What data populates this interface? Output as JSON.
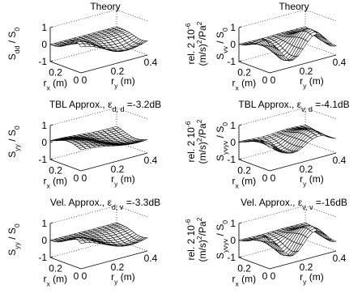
{
  "chart_data": [
    {
      "type": "surface",
      "title": "Theory",
      "zlabel": "S_dd / S_0",
      "zlabel_sub": "dd",
      "units_label": "",
      "xlabel": "r_x (m)",
      "ylabel": "r_y (m)",
      "zlim": [
        -1,
        1
      ],
      "zticks": [
        "1",
        "0",
        "-1"
      ],
      "xticks": [
        "0.2",
        "0"
      ],
      "yticks": [
        "0",
        "0.2",
        "0.4"
      ],
      "surface": "dd_theory"
    },
    {
      "type": "surface",
      "title": "Theory",
      "zlabel": "S_vv / S_0",
      "zlabel_sub": "vv",
      "units_label": "rel. 2 10^-6 (m/s)^2/Pa^2",
      "xlabel": "r_x (m)",
      "ylabel": "r_y (m)",
      "zlim": [
        -1,
        1
      ],
      "zticks": [
        "1",
        "0",
        "-1"
      ],
      "xticks": [
        "0.2",
        "0"
      ],
      "yticks": [
        "0",
        "0.2",
        "0.4"
      ],
      "surface": "vv_theory"
    },
    {
      "type": "surface",
      "title": "TBL Approx., ε_d,d =-3.2dB",
      "title_main": "TBL Approx., ε",
      "title_sub": "d, d",
      "title_tail": " =-3.2dB",
      "zlabel": "S_yy / S_0",
      "zlabel_sub": "yy",
      "units_label": "",
      "xlabel": "r_x (m)",
      "ylabel": "r_y (m)",
      "zlim": [
        -1,
        1
      ],
      "zticks": [
        "1",
        "0",
        "-1"
      ],
      "xticks": [
        "0.2",
        "0"
      ],
      "yticks": [
        "0",
        "0.2",
        "0.4"
      ],
      "surface": "dd_tbl"
    },
    {
      "type": "surface",
      "title": "TBL Approx., ε_v,d =-4.1dB",
      "title_main": "TBL Approx., ε",
      "title_sub": "v, d",
      "title_tail": " =-4.1dB",
      "zlabel": "S_yvyv / S_0",
      "zlabel_sub": "y",
      "units_label": "rel. 2 10^-6 (m/s)^2/Pa^2",
      "xlabel": "r_x (m)",
      "ylabel": "r_y (m)",
      "zlim": [
        -1,
        1
      ],
      "zticks": [
        "1",
        "0",
        "-1"
      ],
      "xticks": [
        "0.2",
        "0"
      ],
      "yticks": [
        "0",
        "0.2",
        "0.4"
      ],
      "surface": "vv_tbl"
    },
    {
      "type": "surface",
      "title": "Vel. Approx., ε_d,v =-3.3dB",
      "title_main": "Vel. Approx., ε",
      "title_sub": "d, v",
      "title_tail": " =-3.3dB",
      "zlabel": "S_yy / S_0",
      "zlabel_sub": "yy",
      "units_label": "",
      "xlabel": "r_x (m)",
      "ylabel": "r_y (m)",
      "zlim": [
        -1,
        1
      ],
      "zticks": [
        "1",
        "0",
        "-1"
      ],
      "xticks": [
        "0.2",
        "0"
      ],
      "yticks": [
        "0",
        "0.2",
        "0.4"
      ],
      "surface": "dd_vel"
    },
    {
      "type": "surface",
      "title": "Vel. Approx., ε_v,v =-16dB",
      "title_main": "Vel. Approx., ε",
      "title_sub": "v, v",
      "title_tail": " =-16dB",
      "zlabel": "S_yvyv / S_0",
      "zlabel_sub": "y",
      "units_label": "rel. 2 10^-6 (m/s)^2/Pa^2",
      "xlabel": "r_x (m)",
      "ylabel": "r_y (m)",
      "zlim": [
        -1,
        1
      ],
      "zticks": [
        "1",
        "0",
        "-1"
      ],
      "xticks": [
        "0.2",
        "0"
      ],
      "yticks": [
        "0",
        "0.2",
        "0.4"
      ],
      "surface": "vv_vel"
    }
  ]
}
